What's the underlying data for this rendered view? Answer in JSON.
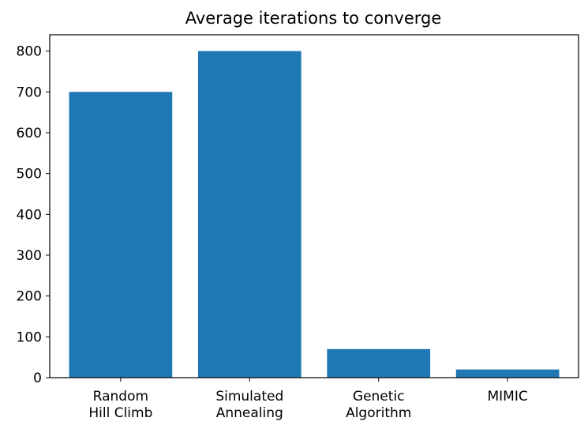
{
  "chart_data": {
    "type": "bar",
    "title": "Average iterations to converge",
    "xlabel": "",
    "ylabel": "",
    "categories": [
      [
        "Random",
        "Hill Climb"
      ],
      [
        "Simulated",
        "Annealing"
      ],
      [
        "Genetic",
        "Algorithm"
      ],
      [
        "MIMIC"
      ]
    ],
    "values": [
      700,
      800,
      70,
      20
    ],
    "ylim": [
      0,
      840
    ],
    "yticks": [
      0,
      100,
      200,
      300,
      400,
      500,
      600,
      700,
      800
    ],
    "bar_color": "#1f77b4",
    "grid": false,
    "legend": "none"
  }
}
